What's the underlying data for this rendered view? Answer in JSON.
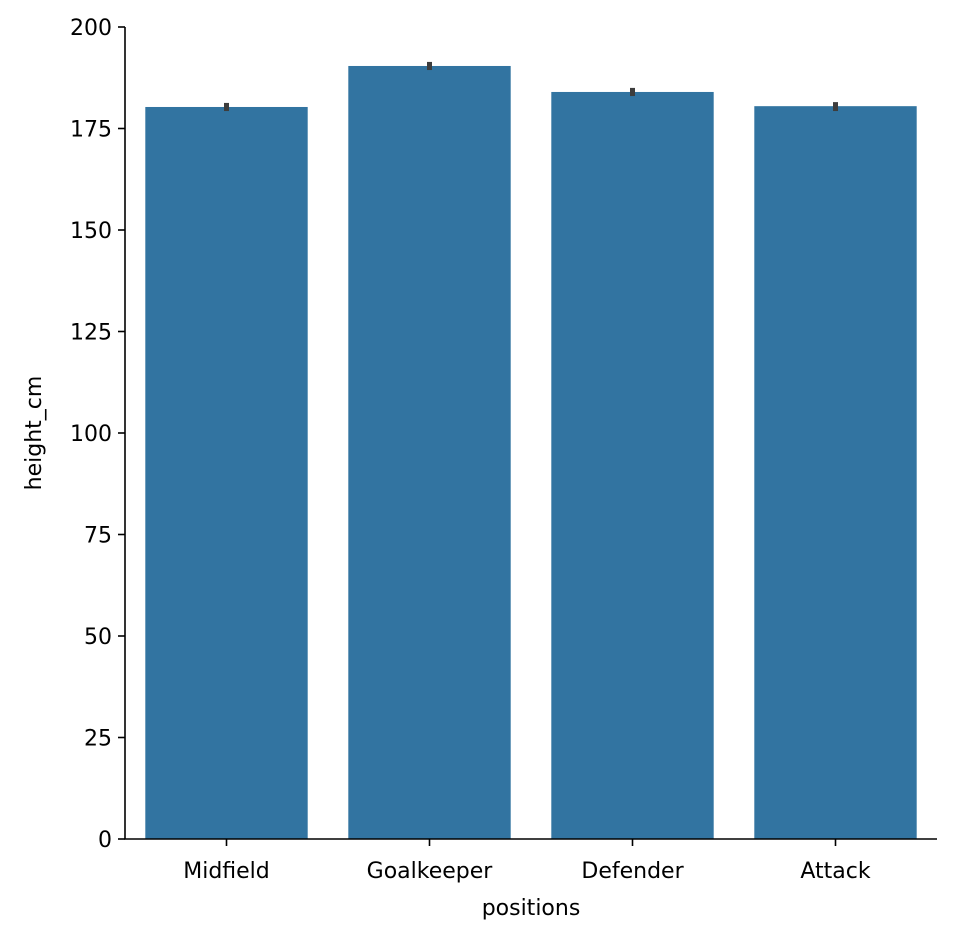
{
  "chart_data": {
    "type": "bar",
    "title": "",
    "xlabel": "positions",
    "ylabel": "height_cm",
    "categories": [
      "Midfield",
      "Goalkeeper",
      "Defender",
      "Attack"
    ],
    "values": [
      180.3,
      190.4,
      184.0,
      180.5
    ],
    "error_bars": [
      [
        179.3,
        181.3
      ],
      [
        189.4,
        191.4
      ],
      [
        183.0,
        185.0
      ],
      [
        179.3,
        181.5
      ]
    ],
    "ylim": [
      0,
      200
    ],
    "yticks": [
      0,
      25,
      50,
      75,
      100,
      125,
      150,
      175,
      200
    ],
    "grid": false,
    "bar_color": "#3274a1",
    "error_color": "#3d3d3d"
  }
}
